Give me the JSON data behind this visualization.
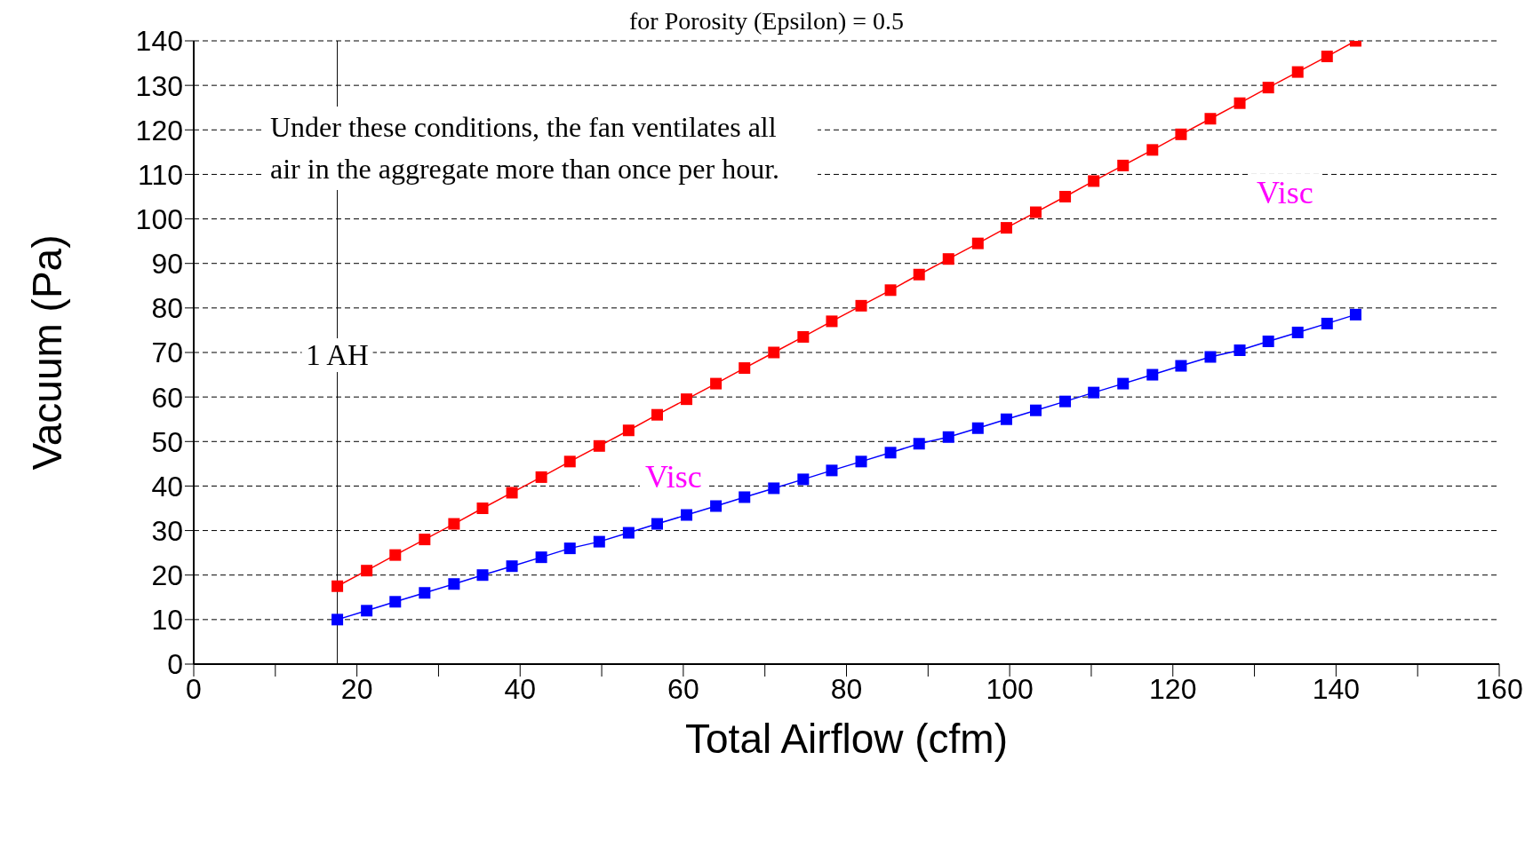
{
  "chart_data": {
    "type": "line",
    "title": "for Porosity (Epsilon) = 0.5",
    "xlabel": "Total Airflow (cfm)",
    "ylabel": "Vacuum (Pa)",
    "x": [
      17.6,
      21.2,
      24.7,
      28.3,
      31.9,
      35.4,
      39.0,
      42.6,
      46.1,
      49.7,
      53.3,
      56.8,
      60.4,
      64.0,
      67.5,
      71.1,
      74.7,
      78.2,
      81.8,
      85.4,
      88.9,
      92.5,
      96.1,
      99.6,
      103.2,
      106.8,
      110.3,
      113.9,
      117.5,
      121.0,
      124.6,
      128.2,
      131.7,
      135.3,
      138.9,
      142.4
    ],
    "series": [
      {
        "color": "#ff0000",
        "values": [
          17.5,
          21,
          24.5,
          28,
          31.5,
          35,
          38.5,
          42,
          45.5,
          49,
          52.5,
          56,
          59.5,
          63,
          66.5,
          70,
          73.5,
          77,
          80.5,
          84,
          87.5,
          91,
          94.5,
          98,
          101.5,
          105,
          108.5,
          112,
          115.5,
          119,
          122.5,
          126,
          129.5,
          133,
          136.5,
          140
        ]
      },
      {
        "color": "#0000ff",
        "values": [
          10,
          12,
          14,
          16,
          18,
          20,
          22,
          24,
          26,
          27.5,
          29.5,
          31.5,
          33.5,
          35.5,
          37.5,
          39.5,
          41.5,
          43.5,
          45.5,
          47.5,
          49.5,
          51,
          53,
          55,
          57,
          59,
          61,
          63,
          65,
          67,
          69,
          70.5,
          72.5,
          74.5,
          76.5,
          78.5
        ]
      }
    ],
    "xlim": [
      0,
      160
    ],
    "xticks": [
      0,
      {
        "value": 10,
        "label": null
      },
      20,
      {
        "value": 30,
        "label": null
      },
      40,
      {
        "value": 50,
        "label": null
      },
      60,
      {
        "value": 70,
        "label": null
      },
      80,
      {
        "value": 90,
        "label": null
      },
      100,
      {
        "value": 110,
        "label": null
      },
      120,
      {
        "value": 130,
        "label": null
      },
      140,
      {
        "value": 150,
        "label": null
      },
      160
    ],
    "ylim": [
      0,
      140
    ],
    "yticks": [
      0,
      10,
      20,
      30,
      40,
      50,
      60,
      70,
      80,
      90,
      100,
      110,
      120,
      130,
      140
    ],
    "grid": "y",
    "marker": "square",
    "line_style": "solid",
    "ref_lines": [
      {
        "axis": "x",
        "value": 17.6,
        "label": "1 AH",
        "color": "#000000"
      }
    ],
    "annotations": [
      "Under these conditions, the fan ventilates all air in the aggregate more than once per hour.",
      "Visc",
      "Visc"
    ]
  }
}
